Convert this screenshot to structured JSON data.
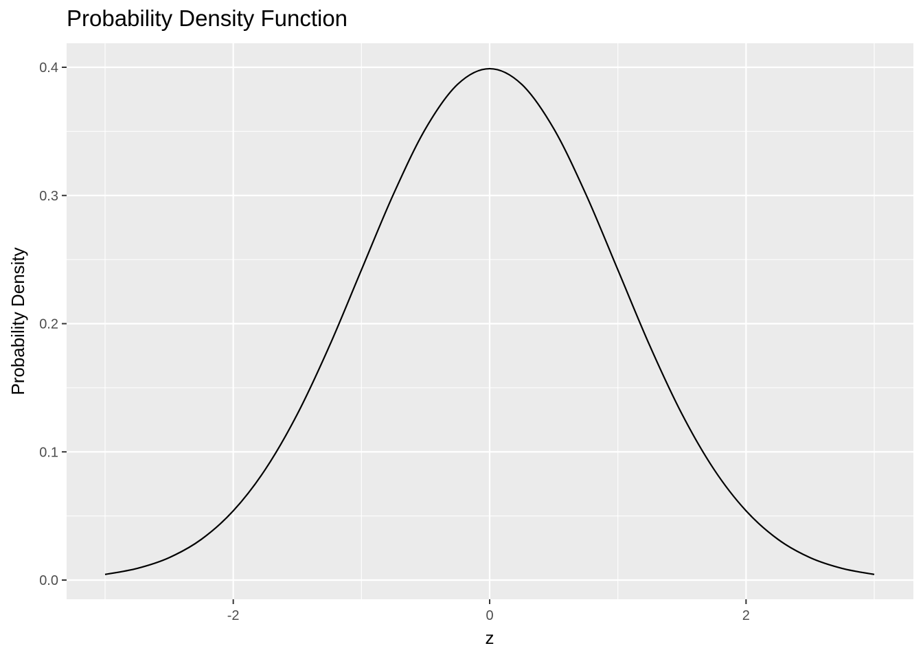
{
  "chart_data": {
    "type": "line",
    "title": "Probability Density Function",
    "xlabel": "z",
    "ylabel": "Probability Density",
    "xlim": [
      -3,
      3
    ],
    "ylim": [
      0,
      0.4
    ],
    "x_ticks": [
      -2,
      0,
      2
    ],
    "x_tick_labels": [
      "-2",
      "0",
      "2"
    ],
    "y_ticks": [
      0.0,
      0.1,
      0.2,
      0.3,
      0.4
    ],
    "y_tick_labels": [
      "0.0",
      "0.1",
      "0.2",
      "0.3",
      "0.4"
    ],
    "grid": true,
    "legend": "none",
    "colors": {
      "panel": "#ebebeb",
      "grid": "#ffffff",
      "line": "#000000",
      "tick_text": "#4d4d4d"
    },
    "series": [
      {
        "x": [
          -3.0,
          -2.75,
          -2.5,
          -2.25,
          -2.0,
          -1.75,
          -1.5,
          -1.25,
          -1.0,
          -0.75,
          -0.5,
          -0.25,
          0.0,
          0.25,
          0.5,
          0.75,
          1.0,
          1.25,
          1.5,
          1.75,
          2.0,
          2.25,
          2.5,
          2.75,
          3.0
        ],
        "y": [
          0.0044,
          0.0091,
          0.0175,
          0.0317,
          0.054,
          0.0863,
          0.1295,
          0.1826,
          0.242,
          0.3011,
          0.3521,
          0.3867,
          0.3989,
          0.3867,
          0.3521,
          0.3011,
          0.242,
          0.1826,
          0.1295,
          0.0863,
          0.054,
          0.0317,
          0.0175,
          0.0091,
          0.0044
        ]
      }
    ]
  }
}
